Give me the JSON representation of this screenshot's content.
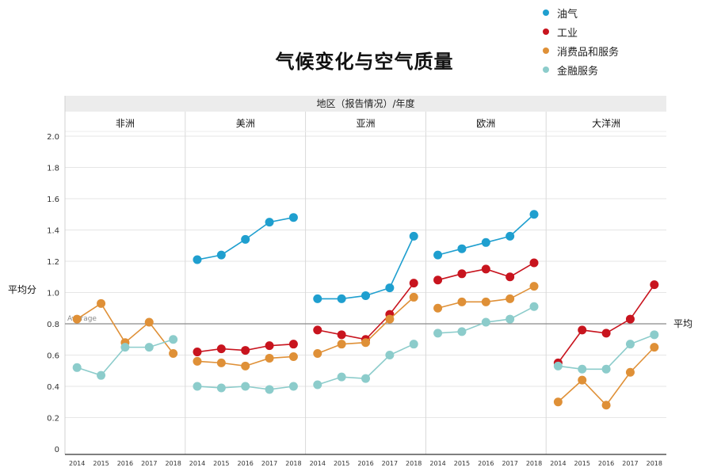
{
  "chart_data": {
    "type": "line",
    "title": "气候变化与空气质量",
    "header": "地区（报告情况）/年度",
    "ylabel": "平均分",
    "ylim": [
      0,
      2.0
    ],
    "yticks": [
      0,
      0.2,
      0.4,
      0.6,
      0.8,
      1.0,
      1.2,
      1.4,
      1.6,
      1.8,
      2.0
    ],
    "ytick_labels": [
      "0",
      "0.2",
      "0.4",
      "0.6",
      "0.8",
      "1.0",
      "1.2",
      "1.4",
      "1.6",
      "1.8",
      "2.0"
    ],
    "grid": true,
    "legend_position": "top-right",
    "reference_line": {
      "value": 0.8,
      "right_label": "平均",
      "left_label": "Average"
    },
    "years": [
      "2014",
      "2015",
      "2016",
      "2017",
      "2018"
    ],
    "series_names": [
      "油气",
      "工业",
      "消费品和服务",
      "金融服务"
    ],
    "series_colors": [
      "#1f9fcf",
      "#c8141e",
      "#df9037",
      "#8ccccb"
    ],
    "panels": [
      {
        "name": "非洲",
        "values": [
          [
            null,
            null,
            null,
            null,
            null
          ],
          [
            null,
            null,
            null,
            null,
            null
          ],
          [
            0.83,
            0.93,
            0.68,
            0.81,
            0.61
          ],
          [
            0.52,
            0.47,
            0.65,
            0.65,
            0.7
          ]
        ]
      },
      {
        "name": "美洲",
        "values": [
          [
            1.21,
            1.24,
            1.34,
            1.45,
            1.48
          ],
          [
            0.62,
            0.64,
            0.63,
            0.66,
            0.67
          ],
          [
            0.56,
            0.55,
            0.53,
            0.58,
            0.59
          ],
          [
            0.4,
            0.39,
            0.4,
            0.38,
            0.4
          ]
        ]
      },
      {
        "name": "亚洲",
        "values": [
          [
            0.96,
            0.96,
            0.98,
            1.03,
            1.36
          ],
          [
            0.76,
            0.73,
            0.7,
            0.86,
            1.06
          ],
          [
            0.61,
            0.67,
            0.68,
            0.83,
            0.97
          ],
          [
            0.41,
            0.46,
            0.45,
            0.6,
            0.67
          ]
        ]
      },
      {
        "name": "欧洲",
        "values": [
          [
            1.24,
            1.28,
            1.32,
            1.36,
            1.5
          ],
          [
            1.08,
            1.12,
            1.15,
            1.1,
            1.19
          ],
          [
            0.9,
            0.94,
            0.94,
            0.96,
            1.04
          ],
          [
            0.74,
            0.75,
            0.81,
            0.83,
            0.91
          ]
        ]
      },
      {
        "name": "大洋洲",
        "values": [
          [
            null,
            null,
            null,
            null,
            null
          ],
          [
            0.55,
            0.76,
            0.74,
            0.83,
            1.05
          ],
          [
            0.3,
            0.44,
            0.28,
            0.49,
            0.65
          ],
          [
            0.53,
            0.51,
            0.51,
            0.67,
            0.73
          ]
        ]
      }
    ]
  }
}
